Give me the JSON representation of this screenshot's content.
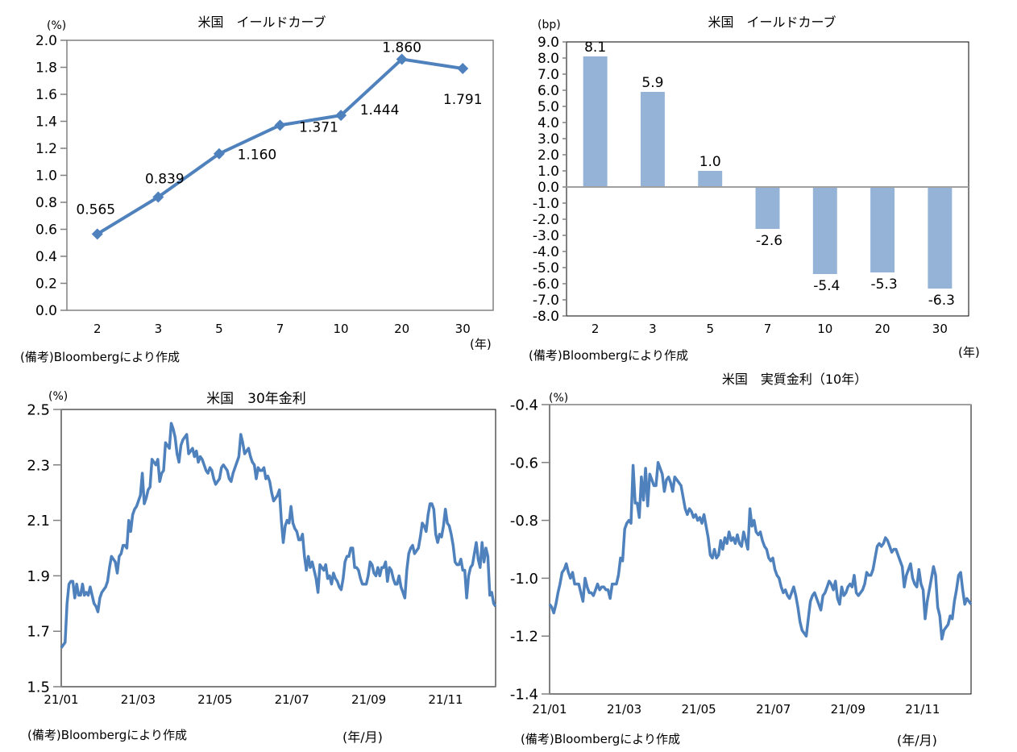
{
  "chart_data": [
    {
      "id": "yield-curve-level",
      "type": "line",
      "title": "米国　イールドカーブ",
      "ylabel": "(%)",
      "xlabel": "(年)",
      "categories": [
        "2",
        "3",
        "5",
        "7",
        "10",
        "20",
        "30"
      ],
      "values": [
        0.565,
        0.839,
        1.16,
        1.371,
        1.444,
        1.86,
        1.791
      ],
      "data_labels": [
        "0.565",
        "0.839",
        "1.160",
        "1.371",
        "1.444",
        "1.860",
        "1.791"
      ],
      "ylim": [
        0,
        2.0
      ],
      "yticks": [
        "0.0",
        "0.2",
        "0.4",
        "0.6",
        "0.8",
        "1.0",
        "1.2",
        "1.4",
        "1.6",
        "1.8",
        "2.0"
      ],
      "grid": false,
      "marker": "diamond",
      "color": "#4f81bd",
      "source": "(備考)Bloombergにより作成"
    },
    {
      "id": "yield-curve-change",
      "type": "bar",
      "title": "米国　イールドカーブ",
      "ylabel": "(bp)",
      "xlabel": "(年)",
      "categories": [
        "2",
        "3",
        "5",
        "7",
        "10",
        "20",
        "30"
      ],
      "values": [
        8.1,
        5.9,
        1.0,
        -2.6,
        -5.4,
        -5.3,
        -6.3
      ],
      "data_labels": [
        "8.1",
        "5.9",
        "1.0",
        "-2.6",
        "-5.4",
        "-5.3",
        "-6.3"
      ],
      "ylim": [
        -8.0,
        9.0
      ],
      "yticks": [
        "-8.0",
        "-7.0",
        "-6.0",
        "-5.0",
        "-4.0",
        "-3.0",
        "-2.0",
        "-1.0",
        "0.0",
        "1.0",
        "2.0",
        "3.0",
        "4.0",
        "5.0",
        "6.0",
        "7.0",
        "8.0",
        "9.0"
      ],
      "grid": false,
      "color": "#95b3d7",
      "source": "(備考)Bloombergにより作成"
    },
    {
      "id": "us-30y-rate",
      "type": "line",
      "title": "米国　30年金利",
      "ylabel": "(%)",
      "xlabel": "(年/月)",
      "xticks": [
        "21/01",
        "21/03",
        "21/05",
        "21/07",
        "21/09",
        "21/11"
      ],
      "ylim": [
        1.5,
        2.5
      ],
      "yticks": [
        "1.5",
        "1.7",
        "1.9",
        "2.1",
        "2.3",
        "2.5"
      ],
      "grid": false,
      "color": "#4f81bd",
      "x_range_months": [
        0,
        11.3
      ],
      "series": [
        {
          "name": "30年金利",
          "values": [
            1.64,
            1.65,
            1.66,
            1.8,
            1.87,
            1.88,
            1.88,
            1.82,
            1.87,
            1.83,
            1.83,
            1.87,
            1.83,
            1.84,
            1.83,
            1.86,
            1.83,
            1.8,
            1.79,
            1.77,
            1.82,
            1.84,
            1.85,
            1.86,
            1.88,
            1.93,
            1.97,
            1.96,
            1.95,
            1.91,
            1.97,
            1.98,
            2.01,
            2.01,
            2.0,
            2.1,
            2.06,
            2.12,
            2.14,
            2.15,
            2.17,
            2.19,
            2.27,
            2.16,
            2.18,
            2.21,
            2.22,
            2.32,
            2.31,
            2.3,
            2.32,
            2.24,
            2.27,
            2.28,
            2.38,
            2.37,
            2.36,
            2.45,
            2.43,
            2.4,
            2.34,
            2.31,
            2.37,
            2.39,
            2.4,
            2.41,
            2.34,
            2.35,
            2.36,
            2.33,
            2.35,
            2.31,
            2.33,
            2.32,
            2.3,
            2.28,
            2.27,
            2.29,
            2.28,
            2.25,
            2.23,
            2.24,
            2.25,
            2.29,
            2.3,
            2.29,
            2.28,
            2.25,
            2.24,
            2.27,
            2.29,
            2.31,
            2.33,
            2.41,
            2.38,
            2.34,
            2.35,
            2.36,
            2.33,
            2.31,
            2.3,
            2.25,
            2.29,
            2.28,
            2.28,
            2.29,
            2.25,
            2.26,
            2.24,
            2.2,
            2.17,
            2.18,
            2.19,
            2.21,
            2.1,
            2.02,
            2.08,
            2.1,
            2.09,
            2.15,
            2.09,
            2.07,
            2.06,
            2.03,
            2.03,
            2.05,
            1.97,
            1.92,
            1.97,
            1.93,
            1.95,
            1.92,
            1.89,
            1.84,
            1.94,
            1.93,
            1.92,
            1.94,
            1.89,
            1.9,
            1.87,
            1.91,
            1.89,
            1.88,
            1.86,
            1.85,
            1.89,
            1.95,
            1.97,
            1.97,
            2.0,
            2.0,
            1.93,
            1.93,
            1.92,
            1.89,
            1.87,
            1.87,
            1.87,
            1.9,
            1.95,
            1.94,
            1.91,
            1.9,
            1.93,
            1.9,
            1.93,
            1.93,
            1.95,
            1.88,
            1.93,
            1.92,
            1.89,
            1.87,
            1.87,
            1.9,
            1.86,
            1.84,
            1.82,
            1.92,
            1.98,
            2.0,
            2.01,
            1.98,
            1.99,
            2.0,
            2.04,
            2.09,
            2.08,
            2.06,
            2.12,
            2.16,
            2.16,
            2.14,
            2.05,
            2.02,
            2.05,
            2.04,
            2.08,
            2.14,
            2.09,
            2.08,
            2.05,
            2.01,
            1.95,
            1.94,
            1.94,
            1.96,
            1.92,
            1.92,
            1.82,
            1.9,
            1.93,
            1.94,
            1.98,
            2.02,
            1.96,
            1.93,
            2.02,
            1.95,
            2.0,
            1.97,
            1.83,
            1.84,
            1.8,
            1.79
          ]
        }
      ],
      "source": "(備考)Bloombergにより作成"
    },
    {
      "id": "us-real-rate-10y",
      "type": "line",
      "title": "米国　実質金利（10年）",
      "ylabel": "(%)",
      "xlabel": "(年/月)",
      "xticks": [
        "21/01",
        "21/03",
        "21/05",
        "21/07",
        "21/09",
        "21/11"
      ],
      "ylim": [
        -1.4,
        -0.4
      ],
      "yticks": [
        "-1.4",
        "-1.2",
        "-1.0",
        "-0.8",
        "-0.6",
        "-0.4"
      ],
      "grid": false,
      "color": "#4f81bd",
      "x_range_months": [
        0,
        11.3
      ],
      "series": [
        {
          "name": "実質金利(10年)",
          "values": [
            -1.09,
            -1.1,
            -1.12,
            -1.09,
            -1.05,
            -1.02,
            -0.98,
            -0.97,
            -0.95,
            -0.98,
            -1.0,
            -0.98,
            -1.02,
            -1.02,
            -1.02,
            -1.05,
            -1.08,
            -1.0,
            -1.03,
            -1.05,
            -1.05,
            -1.06,
            -1.04,
            -1.02,
            -1.04,
            -1.03,
            -1.03,
            -1.04,
            -1.04,
            -1.07,
            -1.02,
            -1.02,
            -1.02,
            -0.99,
            -0.93,
            -0.94,
            -0.83,
            -0.81,
            -0.8,
            -0.81,
            -0.61,
            -0.74,
            -0.74,
            -0.79,
            -0.65,
            -0.73,
            -0.62,
            -0.75,
            -0.64,
            -0.66,
            -0.68,
            -0.68,
            -0.6,
            -0.62,
            -0.64,
            -0.7,
            -0.66,
            -0.65,
            -0.67,
            -0.7,
            -0.65,
            -0.66,
            -0.67,
            -0.68,
            -0.72,
            -0.76,
            -0.78,
            -0.76,
            -0.77,
            -0.79,
            -0.78,
            -0.8,
            -0.79,
            -0.81,
            -0.78,
            -0.82,
            -0.86,
            -0.92,
            -0.93,
            -0.9,
            -0.93,
            -0.92,
            -0.87,
            -0.9,
            -0.86,
            -0.88,
            -0.84,
            -0.87,
            -0.86,
            -0.88,
            -0.85,
            -0.88,
            -0.89,
            -0.84,
            -0.87,
            -0.9,
            -0.76,
            -0.82,
            -0.8,
            -0.84,
            -0.85,
            -0.84,
            -0.87,
            -0.89,
            -0.9,
            -0.93,
            -0.94,
            -0.93,
            -0.97,
            -0.99,
            -1.0,
            -1.03,
            -1.05,
            -1.04,
            -1.06,
            -1.07,
            -1.05,
            -1.03,
            -1.06,
            -1.1,
            -1.15,
            -1.18,
            -1.19,
            -1.2,
            -1.14,
            -1.08,
            -1.06,
            -1.05,
            -1.07,
            -1.09,
            -1.11,
            -1.06,
            -1.05,
            -1.03,
            -1.01,
            -1.02,
            -1.04,
            -1.01,
            -1.07,
            -1.09,
            -1.03,
            -1.06,
            -1.05,
            -1.03,
            -1.02,
            -1.03,
            -0.99,
            -1.05,
            -1.06,
            -1.05,
            -1.04,
            -1.02,
            -0.98,
            -0.99,
            -0.99,
            -0.97,
            -0.93,
            -0.89,
            -0.88,
            -0.89,
            -0.88,
            -0.86,
            -0.87,
            -0.89,
            -0.91,
            -0.9,
            -0.9,
            -0.92,
            -0.94,
            -0.96,
            -1.03,
            -0.99,
            -0.97,
            -0.95,
            -1.0,
            -1.02,
            -1.03,
            -0.97,
            -1.02,
            -1.04,
            -1.14,
            -1.08,
            -1.04,
            -1.0,
            -0.96,
            -0.99,
            -1.1,
            -1.13,
            -1.21,
            -1.18,
            -1.17,
            -1.16,
            -1.13,
            -1.14,
            -1.08,
            -1.04,
            -0.99,
            -0.98,
            -1.04,
            -1.09,
            -1.07,
            -1.08,
            -1.09
          ]
        }
      ],
      "source": "(備考)Bloombergにより作成"
    }
  ]
}
